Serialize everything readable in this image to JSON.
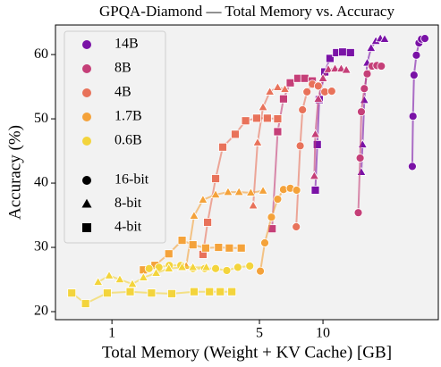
{
  "chart_data": {
    "type": "line",
    "title": "GPQA-Diamond — Total Memory vs. Accuracy",
    "x_label": "Total Memory (Weight + KV Cache) [GB]",
    "y_label": "Accuracy (%)",
    "xscale": "log",
    "xlim": [
      0.54,
      35.2
    ],
    "ylim": [
      18.75,
      64.6
    ],
    "xticks": [
      1,
      5,
      10
    ],
    "yticks": [
      20,
      30,
      40,
      50,
      60
    ],
    "grid": false,
    "legend": "upper left",
    "precisions": [
      {
        "name": "16-bit",
        "marker": "circle"
      },
      {
        "name": "8-bit",
        "marker": "triangle"
      },
      {
        "name": "4-bit",
        "marker": "square"
      }
    ],
    "models": [
      {
        "name": "14B",
        "color": "#7a12a6",
        "series": [
          {
            "marker": "circle",
            "x": [
              26.5,
              26.7,
              27.0,
              27.7,
              28.5,
              29.3,
              30.4
            ],
            "values": [
              42.6,
              50.4,
              56.8,
              59.9,
              61.8,
              62.4,
              62.5
            ]
          },
          {
            "marker": "triangle",
            "x": [
              15.2,
              15.4,
              15.7,
              16.2,
              16.9,
              17.8,
              18.7,
              19.6
            ],
            "values": [
              41.7,
              46.0,
              52.9,
              58.7,
              61.0,
              62.1,
              62.5,
              62.4
            ]
          },
          {
            "marker": "square",
            "x": [
              9.2,
              9.4,
              9.6,
              10.2,
              10.8,
              11.6,
              12.4,
              13.5
            ],
            "values": [
              38.9,
              46.0,
              53.0,
              57.3,
              59.4,
              60.3,
              60.4,
              60.3
            ]
          }
        ]
      },
      {
        "name": "8B",
        "color": "#c53f78",
        "series": [
          {
            "marker": "circle",
            "x": [
              14.7,
              15.0,
              15.2,
              15.7,
              16.2,
              17.1,
              18.0,
              18.9
            ],
            "values": [
              35.4,
              43.9,
              51.1,
              54.7,
              57.0,
              58.2,
              58.3,
              58.2
            ]
          },
          {
            "marker": "triangle",
            "x": [
              9.1,
              9.2,
              9.5,
              10.0,
              10.6,
              11.4,
              12.2,
              12.9
            ],
            "values": [
              41.1,
              47.6,
              53.1,
              56.3,
              57.7,
              57.8,
              57.8,
              57.6
            ]
          },
          {
            "marker": "square",
            "x": [
              5.74,
              6.1,
              6.5,
              7.0,
              7.6,
              8.2,
              8.9
            ],
            "values": [
              32.9,
              48.0,
              53.1,
              55.6,
              56.3,
              56.3,
              55.9
            ]
          }
        ]
      },
      {
        "name": "4B",
        "color": "#e8725a",
        "series": [
          {
            "marker": "circle",
            "x": [
              7.47,
              7.8,
              8.0,
              8.4,
              8.9,
              9.5,
              10.2,
              11.0
            ],
            "values": [
              33.2,
              45.8,
              51.4,
              54.2,
              55.4,
              55.1,
              54.2,
              54.3
            ]
          },
          {
            "marker": "triangle",
            "x": [
              4.67,
              4.9,
              5.2,
              5.6,
              6.1,
              6.6
            ],
            "values": [
              36.5,
              46.3,
              51.8,
              54.2,
              54.9,
              54.6
            ]
          },
          {
            "marker": "square",
            "x": [
              2.7,
              2.84,
              3.1,
              3.35,
              3.84,
              4.3,
              4.85,
              5.45,
              6.1
            ],
            "values": [
              28.9,
              33.9,
              40.7,
              45.6,
              47.6,
              49.7,
              50.1,
              50.1,
              50.0
            ]
          }
        ]
      },
      {
        "name": "1.7B",
        "color": "#f4a23a",
        "series": [
          {
            "marker": "circle",
            "x": [
              5.05,
              5.3,
              5.7,
              6.1,
              6.5,
              7.0,
              7.5
            ],
            "values": [
              26.3,
              30.7,
              34.7,
              37.5,
              39.0,
              39.2,
              38.9
            ]
          },
          {
            "marker": "triangle",
            "x": [
              2.25,
              2.45,
              2.7,
              3.1,
              3.55,
              4.0,
              4.55,
              5.2
            ],
            "values": [
              27.1,
              34.9,
              37.4,
              38.2,
              38.6,
              38.6,
              38.5,
              38.8
            ]
          },
          {
            "marker": "square",
            "x": [
              1.41,
              1.6,
              1.86,
              2.15,
              2.42,
              2.78,
              3.2,
              3.6,
              4.1
            ],
            "values": [
              26.5,
              27.2,
              29.0,
              31.1,
              30.4,
              29.9,
              30.0,
              29.9,
              29.9
            ]
          }
        ]
      },
      {
        "name": "0.6B",
        "color": "#f3d43c",
        "series": [
          {
            "marker": "circle",
            "x": [
              1.5,
              1.67,
              1.87,
              2.12,
              2.42,
              2.75,
              3.1,
              3.5,
              3.95,
              4.5
            ],
            "values": [
              26.7,
              26.9,
              27.2,
              27.2,
              26.7,
              26.7,
              26.7,
              26.4,
              26.9,
              27.1
            ]
          },
          {
            "marker": "triangle",
            "x": [
              0.86,
              0.97,
              1.09,
              1.25,
              1.41,
              1.62,
              1.86,
              2.15,
              2.42,
              2.8
            ],
            "values": [
              24.6,
              25.6,
              25.0,
              24.3,
              25.3,
              26.0,
              26.7,
              26.9,
              26.9,
              26.9
            ]
          },
          {
            "marker": "square",
            "x": [
              0.645,
              0.75,
              0.95,
              1.22,
              1.54,
              1.92,
              2.45,
              2.9,
              3.26,
              3.7
            ],
            "values": [
              22.9,
              21.25,
              22.9,
              23.1,
              22.9,
              22.8,
              23.1,
              23.1,
              23.1,
              23.1
            ]
          }
        ]
      }
    ]
  }
}
